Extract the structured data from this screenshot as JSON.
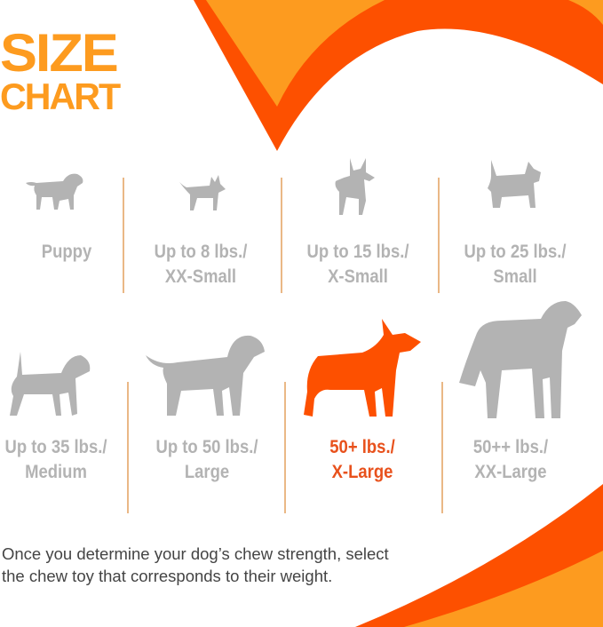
{
  "title": {
    "line1": "SIZE",
    "line2": "CHART"
  },
  "colors": {
    "orange": "#fd9b1f",
    "red_orange": "#fd5000",
    "gray": "#b3b3b3",
    "highlight_text": "#e8511c"
  },
  "sizes": [
    {
      "line1": "Puppy",
      "line2": "",
      "icon": "puppy-icon",
      "highlighted": false
    },
    {
      "line1": "Up to 8 lbs./",
      "line2": "XX-Small",
      "icon": "chihuahua-icon",
      "highlighted": false
    },
    {
      "line1": "Up to 15 lbs./",
      "line2": "X-Small",
      "icon": "pinscher-icon",
      "highlighted": false
    },
    {
      "line1": "Up to 25 lbs./",
      "line2": "Small",
      "icon": "terrier-icon",
      "highlighted": false
    },
    {
      "line1": "Up to 35 lbs./",
      "line2": "Medium",
      "icon": "beagle-icon",
      "highlighted": false
    },
    {
      "line1": "Up to 50 lbs./",
      "line2": "Large",
      "icon": "labrador-icon",
      "highlighted": false
    },
    {
      "line1": "50+ lbs./",
      "line2": "X-Large",
      "icon": "shepherd-icon",
      "highlighted": true
    },
    {
      "line1": "50++ lbs./",
      "line2": "XX-Large",
      "icon": "great-dane-icon",
      "highlighted": false
    }
  ],
  "footer_text": {
    "line1": "Once you determine your dog’s chew strength, select",
    "line2": "the chew toy that corresponds to their weight."
  }
}
